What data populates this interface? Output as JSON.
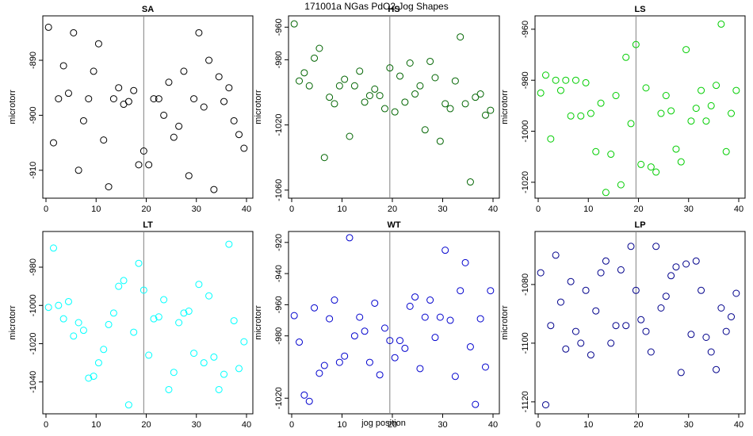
{
  "title": "171001a   NGas PdO2 Jog Shapes",
  "xlabel": "jog position",
  "chart_data": [
    {
      "type": "scatter",
      "title": "SA",
      "ylabel": "microtorr",
      "color": "#000000",
      "xlim": [
        0,
        40
      ],
      "ylim": [
        -914.5,
        -882.5
      ],
      "xticks": [
        "0",
        "10",
        "20",
        "30",
        "40"
      ],
      "yticks": [
        "-890",
        "-900",
        "-910"
      ],
      "ytick_values": [
        -890,
        -900,
        -910
      ],
      "vline": 19.5,
      "x": [
        0.5,
        1.5,
        2.5,
        3.5,
        4.5,
        5.5,
        6.5,
        7.5,
        8.5,
        9.5,
        10.5,
        11.5,
        12.5,
        13.5,
        14.5,
        15.5,
        16.5,
        17.5,
        18.5,
        19.5,
        20.5,
        21.5,
        22.5,
        23.5,
        24.5,
        25.5,
        26.5,
        27.5,
        28.5,
        29.5,
        30.5,
        31.5,
        32.5,
        33.5,
        34.5,
        35.5,
        36.5,
        37.5,
        38.5,
        39.5
      ],
      "y": [
        -884,
        -905,
        -897,
        -891,
        -896,
        -885,
        -910,
        -901,
        -897,
        -892,
        -887,
        -904.5,
        -913,
        -897,
        -895,
        -898,
        -897.5,
        -895.5,
        -909,
        -906.5,
        -909,
        -897,
        -897,
        -900,
        -894,
        -904,
        -902,
        -892,
        -911,
        -897,
        -885,
        -898.5,
        -890,
        -913.5,
        -893,
        -897.5,
        -895,
        -901,
        -903.5,
        -906
      ]
    },
    {
      "type": "scatter",
      "title": "HS",
      "ylabel": "microtorr",
      "color": "#006400",
      "xlim": [
        0,
        40
      ],
      "ylim": [
        -1063,
        -955
      ],
      "xticks": [
        "0",
        "10",
        "20",
        "30",
        "40"
      ],
      "yticks": [
        "-960",
        "-980",
        "-1020",
        "-1060"
      ],
      "ytick_values": [
        -960,
        -980,
        -1020,
        -1060
      ],
      "vline": 19.5,
      "x": [
        0.5,
        1.5,
        2.5,
        3.5,
        4.5,
        5.5,
        6.5,
        7.5,
        8.5,
        9.5,
        10.5,
        11.5,
        12.5,
        13.5,
        14.5,
        15.5,
        16.5,
        17.5,
        18.5,
        19.5,
        20.5,
        21.5,
        22.5,
        23.5,
        24.5,
        25.5,
        26.5,
        27.5,
        28.5,
        29.5,
        30.5,
        31.5,
        32.5,
        33.5,
        34.5,
        35.5,
        36.5,
        37.5,
        38.5,
        39.5
      ],
      "y": [
        -958,
        -993,
        -988,
        -996,
        -979,
        -973,
        -1040,
        -1003,
        -1007,
        -996,
        -992,
        -1027,
        -996,
        -987,
        -1006,
        -1002,
        -998,
        -1002,
        -1010,
        -985,
        -1012,
        -990,
        -1006,
        -982,
        -1001,
        -996,
        -1023,
        -981,
        -991,
        -1030,
        -1007,
        -1010,
        -993,
        -966,
        -1007,
        -1055,
        -1003,
        -1001,
        -1014,
        -1011
      ]
    },
    {
      "type": "scatter",
      "title": "LS",
      "ylabel": "microtorr",
      "color": "#00cd00",
      "xlim": [
        0,
        40
      ],
      "ylim": [
        -1025,
        -956
      ],
      "xticks": [
        "0",
        "10",
        "20",
        "30",
        "40"
      ],
      "yticks": [
        "-960",
        "-980",
        "-1000",
        "-1020"
      ],
      "ytick_values": [
        -960,
        -980,
        -1000,
        -1020
      ],
      "vline": 19.5,
      "x": [
        0.5,
        1.5,
        2.5,
        3.5,
        4.5,
        5.5,
        6.5,
        7.5,
        8.5,
        9.5,
        10.5,
        11.5,
        12.5,
        13.5,
        14.5,
        15.5,
        16.5,
        17.5,
        18.5,
        19.5,
        20.5,
        21.5,
        22.5,
        23.5,
        24.5,
        25.5,
        26.5,
        27.5,
        28.5,
        29.5,
        30.5,
        31.5,
        32.5,
        33.5,
        34.5,
        35.5,
        36.5,
        37.5,
        38.5,
        39.5
      ],
      "y": [
        -985,
        -978,
        -1003,
        -980,
        -984,
        -980,
        -994,
        -980,
        -994,
        -981,
        -993,
        -1008,
        -989,
        -1024,
        -1009,
        -986,
        -1021,
        -971,
        -997,
        -966,
        -1013,
        -983,
        -1014,
        -1016,
        -993,
        -986,
        -992,
        -1007,
        -1012,
        -968,
        -996,
        -991,
        -984,
        -996,
        -990,
        -982,
        -958,
        -1008,
        -993,
        -984
      ]
    },
    {
      "type": "scatter",
      "title": "LT",
      "ylabel": "microtorr",
      "color": "#00ffff",
      "xlim": [
        0,
        40
      ],
      "ylim": [
        -1055,
        -963
      ],
      "xticks": [
        "0",
        "10",
        "20",
        "30",
        "40"
      ],
      "yticks": [
        "-980",
        "-1000",
        "-1020",
        "-1040"
      ],
      "ytick_values": [
        -980,
        -1000,
        -1020,
        -1040
      ],
      "vline": 19.5,
      "x": [
        0.5,
        1.5,
        2.5,
        3.5,
        4.5,
        5.5,
        6.5,
        7.5,
        8.5,
        9.5,
        10.5,
        11.5,
        12.5,
        13.5,
        14.5,
        15.5,
        16.5,
        17.5,
        18.5,
        19.5,
        20.5,
        21.5,
        22.5,
        23.5,
        24.5,
        25.5,
        26.5,
        27.5,
        28.5,
        29.5,
        30.5,
        31.5,
        32.5,
        33.5,
        34.5,
        35.5,
        36.5,
        37.5,
        38.5,
        39.5
      ],
      "y": [
        -1001,
        -970,
        -1000,
        -1007,
        -998,
        -1016,
        -1009,
        -1013,
        -1038,
        -1037,
        -1030,
        -1023,
        -1010,
        -1004,
        -990,
        -987,
        -1052,
        -1014,
        -978,
        -992,
        -1026,
        -1007,
        -1006,
        -997,
        -1044,
        -1035,
        -1009,
        -1004,
        -1003,
        -1025,
        -989,
        -1030,
        -995,
        -1027,
        -1044,
        -1036,
        -968,
        -1008,
        -1033,
        -1019
      ]
    },
    {
      "type": "scatter",
      "title": "WT",
      "ylabel": "microtorr",
      "color": "#0000cd",
      "xlim": [
        0,
        40
      ],
      "ylim": [
        -1028,
        -915
      ],
      "xticks": [
        "0",
        "10",
        "20",
        "30",
        "40"
      ],
      "yticks": [
        "-920",
        "-940",
        "-960",
        "-980",
        "-1020"
      ],
      "ytick_values": [
        -920,
        -940,
        -960,
        -980,
        -1020
      ],
      "vline": 19.5,
      "x": [
        0.5,
        1.5,
        2.5,
        3.5,
        4.5,
        5.5,
        6.5,
        7.5,
        8.5,
        9.5,
        10.5,
        11.5,
        12.5,
        13.5,
        14.5,
        15.5,
        16.5,
        17.5,
        18.5,
        19.5,
        20.5,
        21.5,
        22.5,
        23.5,
        24.5,
        25.5,
        26.5,
        27.5,
        28.5,
        29.5,
        30.5,
        31.5,
        32.5,
        33.5,
        34.5,
        35.5,
        36.5,
        37.5,
        38.5,
        39.5
      ],
      "y": [
        -967,
        -984,
        -1018,
        -1022,
        -962,
        -1004,
        -999,
        -969,
        -957,
        -997,
        -993,
        -917,
        -980,
        -968,
        -977,
        -997,
        -959,
        -1005,
        -975,
        -983,
        -994,
        -983,
        -988,
        -961,
        -955,
        -1001,
        -968,
        -957,
        -981,
        -968,
        -925,
        -970,
        -1006,
        -951,
        -933,
        -987,
        -1024,
        -969,
        -1000,
        -951
      ]
    },
    {
      "type": "scatter",
      "title": "LP",
      "ylabel": "microtorr",
      "color": "#00008b",
      "xlim": [
        0,
        40
      ],
      "ylim": [
        -1123,
        -1063
      ],
      "xticks": [
        "0",
        "10",
        "20",
        "30",
        "40"
      ],
      "yticks": [
        "-1080",
        "-1100",
        "-1120"
      ],
      "ytick_values": [
        -1080,
        -1100,
        -1120
      ],
      "vline": 19.5,
      "x": [
        0.5,
        1.5,
        2.5,
        3.5,
        4.5,
        5.5,
        6.5,
        7.5,
        8.5,
        9.5,
        10.5,
        11.5,
        12.5,
        13.5,
        14.5,
        15.5,
        16.5,
        17.5,
        18.5,
        19.5,
        20.5,
        21.5,
        22.5,
        23.5,
        24.5,
        25.5,
        26.5,
        27.5,
        28.5,
        29.5,
        30.5,
        31.5,
        32.5,
        33.5,
        34.5,
        35.5,
        36.5,
        37.5,
        38.5,
        39.5
      ],
      "y": [
        -1076,
        -1121,
        -1094,
        -1070,
        -1086,
        -1102,
        -1079,
        -1096,
        -1100,
        -1082,
        -1104,
        -1089,
        -1076,
        -1072,
        -1100,
        -1094,
        -1075,
        -1094,
        -1067,
        -1082,
        -1092,
        -1096,
        -1103,
        -1067,
        -1088,
        -1084,
        -1077,
        -1074,
        -1110,
        -1073,
        -1097,
        -1072,
        -1082,
        -1098,
        -1103,
        -1109,
        -1088,
        -1096,
        -1091,
        -1083
      ]
    }
  ]
}
